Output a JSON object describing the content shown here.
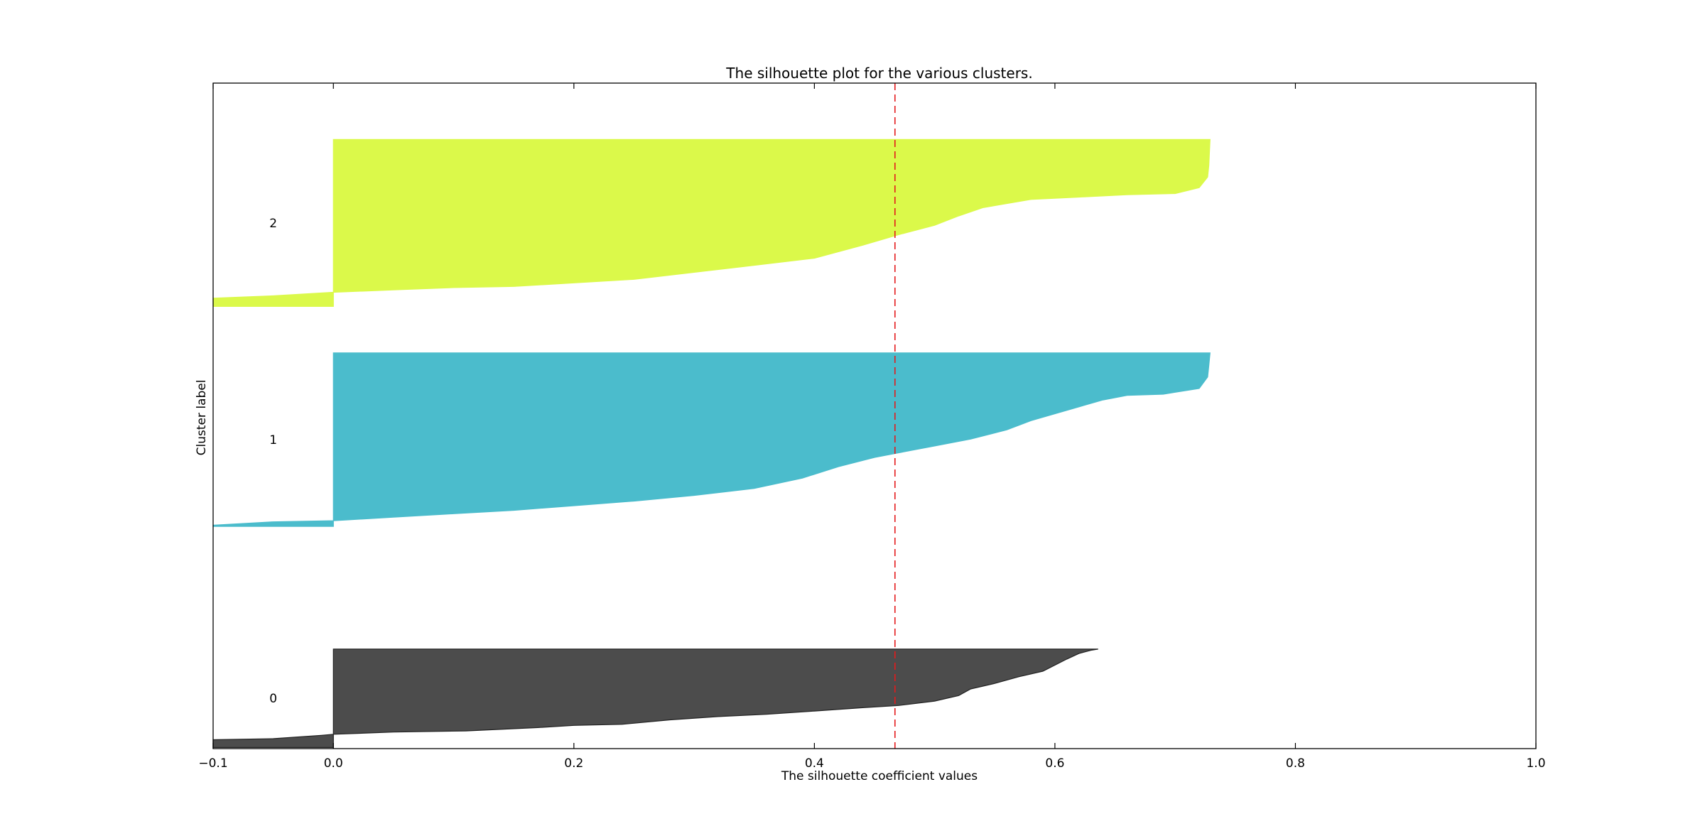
{
  "chart_data": {
    "type": "area",
    "title": "The silhouette plot for the various clusters.",
    "xlabel": "The silhouette coefficient values",
    "ylabel": "Cluster label",
    "xlim": [
      -0.1,
      1.0
    ],
    "xticks": [
      -0.1,
      0.0,
      0.2,
      0.4,
      0.6,
      0.8,
      1.0
    ],
    "xtick_labels": [
      "−0.1",
      "0.0",
      "0.2",
      "0.4",
      "0.6",
      "0.8",
      "1.0"
    ],
    "ylim": [
      0,
      602
    ],
    "yticks": [],
    "grid": false,
    "average_silhouette_score": 0.467,
    "average_line_color": "#e41a1c",
    "series": [
      {
        "name": "0",
        "color": "#4c4c4c",
        "edge_color": "#222222",
        "y_range": [
          1,
          90
        ],
        "profile": [
          [
            -0.1,
            0
          ],
          [
            -0.1,
            7
          ],
          [
            -0.05,
            8
          ],
          [
            -0.01,
            11
          ],
          [
            0.0,
            12
          ],
          [
            0.05,
            14
          ],
          [
            0.11,
            15
          ],
          [
            0.17,
            18
          ],
          [
            0.2,
            20
          ],
          [
            0.24,
            21
          ],
          [
            0.28,
            25
          ],
          [
            0.32,
            28
          ],
          [
            0.36,
            30
          ],
          [
            0.4,
            33
          ],
          [
            0.44,
            36
          ],
          [
            0.47,
            38
          ],
          [
            0.5,
            42
          ],
          [
            0.52,
            47
          ],
          [
            0.53,
            53
          ],
          [
            0.55,
            58
          ],
          [
            0.57,
            64
          ],
          [
            0.59,
            69
          ],
          [
            0.61,
            80
          ],
          [
            0.62,
            85
          ],
          [
            0.63,
            88
          ],
          [
            0.636,
            89
          ]
        ]
      },
      {
        "name": "1",
        "color": "#4bbccc",
        "edge_color": "#4bbccc",
        "y_range": [
          201,
          358
        ],
        "profile": [
          [
            -0.1,
            0
          ],
          [
            -0.1,
            1
          ],
          [
            -0.05,
            4
          ],
          [
            0.0,
            5
          ],
          [
            0.05,
            8
          ],
          [
            0.1,
            11
          ],
          [
            0.15,
            14
          ],
          [
            0.2,
            18
          ],
          [
            0.25,
            22
          ],
          [
            0.3,
            27
          ],
          [
            0.35,
            33
          ],
          [
            0.39,
            42
          ],
          [
            0.42,
            52
          ],
          [
            0.45,
            60
          ],
          [
            0.48,
            66
          ],
          [
            0.5,
            70
          ],
          [
            0.53,
            76
          ],
          [
            0.56,
            84
          ],
          [
            0.58,
            92
          ],
          [
            0.6,
            98
          ],
          [
            0.62,
            104
          ],
          [
            0.64,
            110
          ],
          [
            0.66,
            114
          ],
          [
            0.69,
            115
          ],
          [
            0.72,
            120
          ],
          [
            0.727,
            130
          ],
          [
            0.728,
            140
          ],
          [
            0.729,
            151
          ]
        ]
      },
      {
        "name": "2",
        "color": "#dbf94a",
        "edge_color": "#dbf94a",
        "y_range": [
          400,
          551
        ],
        "profile": [
          [
            -0.1,
            0
          ],
          [
            -0.1,
            7
          ],
          [
            -0.05,
            9
          ],
          [
            0.0,
            12
          ],
          [
            0.05,
            14
          ],
          [
            0.1,
            16
          ],
          [
            0.15,
            17
          ],
          [
            0.2,
            20
          ],
          [
            0.25,
            23
          ],
          [
            0.3,
            29
          ],
          [
            0.35,
            35
          ],
          [
            0.4,
            41
          ],
          [
            0.44,
            52
          ],
          [
            0.47,
            61
          ],
          [
            0.5,
            69
          ],
          [
            0.52,
            77
          ],
          [
            0.54,
            84
          ],
          [
            0.58,
            91
          ],
          [
            0.62,
            93
          ],
          [
            0.66,
            95
          ],
          [
            0.7,
            96
          ],
          [
            0.72,
            101
          ],
          [
            0.727,
            110
          ],
          [
            0.728,
            120
          ],
          [
            0.729,
            142
          ]
        ]
      }
    ]
  }
}
